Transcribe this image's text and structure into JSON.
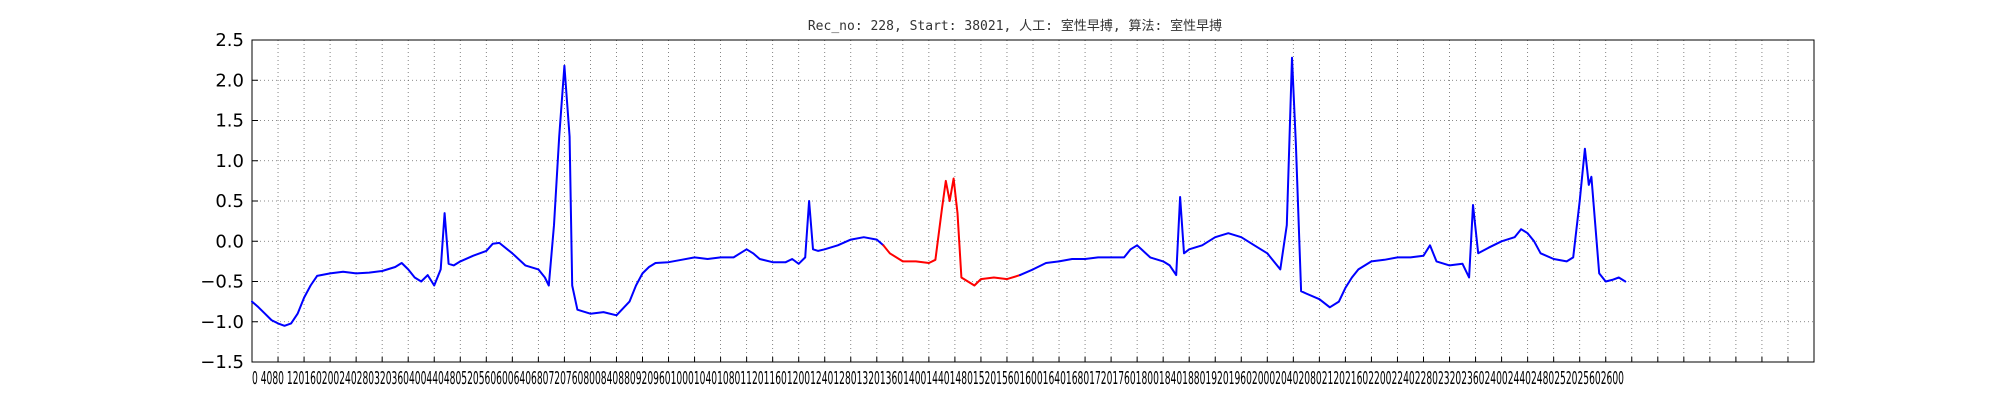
{
  "chart_data": {
    "type": "line",
    "title": "Rec_no: 228, Start: 38021, 人工: 室性早搏, 算法: 室性早搏",
    "ylim": [
      -1.5,
      2.5
    ],
    "yticks": [
      2.5,
      2.0,
      1.5,
      1.0,
      0.5,
      0.0,
      -0.5,
      -1.0,
      -1.5
    ],
    "ytick_labels": [
      "2.5",
      "2.0",
      "1.5",
      "1.0",
      "0.5",
      "0.0",
      "−0.5",
      "−1.0",
      "−1.5"
    ],
    "xlim": [
      0,
      1200
    ],
    "x_axis_label_text": "0 4080 12016020024028032036040044048052056060064068072076080084088092096010001040108011201160120012401280132013601400144014801520156016001640168017201760180018401880192019602000204020802120216022002240228023202360240024402480252025602600",
    "grid": true,
    "grid_style": "dotted",
    "series": [
      {
        "color": "#0000ff",
        "points": [
          [
            0,
            -0.75
          ],
          [
            5,
            -0.82
          ],
          [
            10,
            -0.9
          ],
          [
            15,
            -0.98
          ],
          [
            20,
            -1.02
          ],
          [
            25,
            -1.05
          ],
          [
            30,
            -1.02
          ],
          [
            35,
            -0.9
          ],
          [
            40,
            -0.7
          ],
          [
            45,
            -0.55
          ],
          [
            50,
            -0.43
          ],
          [
            60,
            -0.4
          ],
          [
            70,
            -0.38
          ],
          [
            80,
            -0.4
          ],
          [
            90,
            -0.39
          ],
          [
            100,
            -0.37
          ],
          [
            110,
            -0.32
          ],
          [
            115,
            -0.27
          ],
          [
            120,
            -0.35
          ],
          [
            125,
            -0.45
          ],
          [
            130,
            -0.5
          ],
          [
            135,
            -0.42
          ],
          [
            140,
            -0.55
          ],
          [
            145,
            -0.35
          ],
          [
            148,
            0.35
          ],
          [
            151,
            -0.28
          ],
          [
            155,
            -0.3
          ],
          [
            160,
            -0.25
          ],
          [
            170,
            -0.18
          ],
          [
            180,
            -0.12
          ],
          [
            185,
            -0.03
          ],
          [
            190,
            -0.02
          ],
          [
            200,
            -0.15
          ],
          [
            210,
            -0.3
          ],
          [
            220,
            -0.35
          ],
          [
            225,
            -0.45
          ],
          [
            228,
            -0.55
          ],
          [
            232,
            0.2
          ],
          [
            236,
            1.3
          ],
          [
            240,
            2.18
          ],
          [
            244,
            1.3
          ],
          [
            246,
            -0.55
          ],
          [
            250,
            -0.85
          ],
          [
            260,
            -0.9
          ],
          [
            270,
            -0.88
          ],
          [
            280,
            -0.92
          ],
          [
            290,
            -0.75
          ],
          [
            295,
            -0.55
          ],
          [
            300,
            -0.4
          ],
          [
            305,
            -0.32
          ],
          [
            310,
            -0.27
          ],
          [
            320,
            -0.26
          ],
          [
            330,
            -0.23
          ],
          [
            340,
            -0.2
          ],
          [
            350,
            -0.22
          ],
          [
            360,
            -0.2
          ],
          [
            370,
            -0.2
          ],
          [
            375,
            -0.15
          ],
          [
            380,
            -0.1
          ],
          [
            385,
            -0.15
          ],
          [
            390,
            -0.22
          ],
          [
            400,
            -0.26
          ],
          [
            410,
            -0.26
          ],
          [
            415,
            -0.22
          ],
          [
            420,
            -0.28
          ],
          [
            425,
            -0.2
          ],
          [
            428,
            0.5
          ],
          [
            431,
            -0.1
          ],
          [
            435,
            -0.12
          ],
          [
            440,
            -0.1
          ],
          [
            450,
            -0.05
          ],
          [
            460,
            0.02
          ],
          [
            470,
            0.05
          ],
          [
            480,
            0.02
          ],
          [
            485,
            -0.05
          ]
        ]
      },
      {
        "color": "#ff0000",
        "points": [
          [
            485,
            -0.05
          ],
          [
            490,
            -0.15
          ],
          [
            500,
            -0.25
          ],
          [
            510,
            -0.25
          ],
          [
            520,
            -0.27
          ],
          [
            525,
            -0.23
          ],
          [
            530,
            0.4
          ],
          [
            533,
            0.75
          ],
          [
            536,
            0.5
          ],
          [
            539,
            0.78
          ],
          [
            542,
            0.35
          ],
          [
            545,
            -0.45
          ],
          [
            550,
            -0.5
          ],
          [
            555,
            -0.55
          ],
          [
            560,
            -0.47
          ],
          [
            570,
            -0.45
          ],
          [
            580,
            -0.47
          ],
          [
            590,
            -0.42
          ]
        ]
      },
      {
        "color": "#0000ff",
        "points": [
          [
            590,
            -0.42
          ],
          [
            600,
            -0.35
          ],
          [
            610,
            -0.27
          ],
          [
            620,
            -0.25
          ],
          [
            630,
            -0.22
          ],
          [
            640,
            -0.22
          ],
          [
            650,
            -0.2
          ],
          [
            660,
            -0.2
          ],
          [
            670,
            -0.2
          ],
          [
            675,
            -0.1
          ],
          [
            680,
            -0.05
          ],
          [
            690,
            -0.2
          ],
          [
            700,
            -0.25
          ],
          [
            705,
            -0.3
          ],
          [
            710,
            -0.42
          ],
          [
            713,
            0.55
          ],
          [
            716,
            -0.15
          ],
          [
            720,
            -0.1
          ],
          [
            730,
            -0.05
          ],
          [
            740,
            0.05
          ],
          [
            750,
            0.1
          ],
          [
            760,
            0.05
          ],
          [
            770,
            -0.05
          ],
          [
            780,
            -0.15
          ],
          [
            785,
            -0.25
          ],
          [
            790,
            -0.35
          ],
          [
            795,
            0.2
          ],
          [
            799,
            2.28
          ],
          [
            802,
            1.2
          ],
          [
            806,
            -0.62
          ],
          [
            810,
            -0.65
          ],
          [
            820,
            -0.72
          ],
          [
            828,
            -0.82
          ],
          [
            835,
            -0.75
          ],
          [
            840,
            -0.58
          ],
          [
            845,
            -0.45
          ],
          [
            850,
            -0.35
          ],
          [
            860,
            -0.25
          ],
          [
            870,
            -0.23
          ],
          [
            880,
            -0.2
          ],
          [
            890,
            -0.2
          ],
          [
            900,
            -0.18
          ],
          [
            905,
            -0.05
          ],
          [
            910,
            -0.25
          ],
          [
            920,
            -0.3
          ],
          [
            930,
            -0.28
          ],
          [
            935,
            -0.45
          ],
          [
            938,
            0.45
          ],
          [
            942,
            -0.15
          ],
          [
            950,
            -0.08
          ],
          [
            960,
            0.0
          ],
          [
            970,
            0.05
          ],
          [
            975,
            0.15
          ],
          [
            980,
            0.1
          ],
          [
            985,
            0.0
          ],
          [
            990,
            -0.15
          ],
          [
            1000,
            -0.22
          ],
          [
            1010,
            -0.25
          ],
          [
            1015,
            -0.2
          ],
          [
            1020,
            0.5
          ],
          [
            1024,
            1.15
          ],
          [
            1027,
            0.7
          ],
          [
            1029,
            0.8
          ],
          [
            1032,
            0.2
          ],
          [
            1035,
            -0.4
          ],
          [
            1040,
            -0.5
          ],
          [
            1045,
            -0.48
          ],
          [
            1050,
            -0.45
          ],
          [
            1055,
            -0.5
          ]
        ]
      }
    ]
  }
}
